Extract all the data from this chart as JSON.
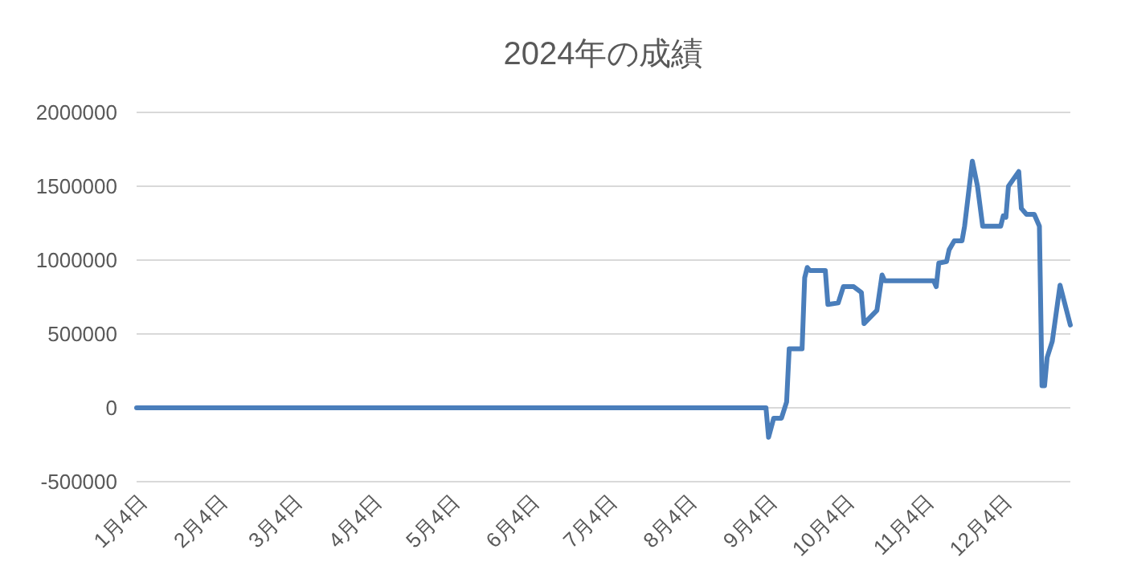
{
  "chart_data": {
    "type": "line",
    "title": "2024年の成績",
    "x": [
      "2024-01-04",
      "2024-09-04",
      "2024-09-05",
      "2024-09-07",
      "2024-09-10",
      "2024-09-12",
      "2024-09-13",
      "2024-09-18",
      "2024-09-19",
      "2024-09-20",
      "2024-09-21",
      "2024-09-27",
      "2024-09-28",
      "2024-10-02",
      "2024-10-04",
      "2024-10-08",
      "2024-10-11",
      "2024-10-12",
      "2024-10-17",
      "2024-10-19",
      "2024-10-20",
      "2024-11-08",
      "2024-11-09",
      "2024-11-10",
      "2024-11-13",
      "2024-11-14",
      "2024-11-16",
      "2024-11-19",
      "2024-11-20",
      "2024-11-23",
      "2024-11-25",
      "2024-11-27",
      "2024-12-04",
      "2024-12-05",
      "2024-12-06",
      "2024-12-07",
      "2024-12-11",
      "2024-12-12",
      "2024-12-14",
      "2024-12-17",
      "2024-12-19",
      "2024-12-20",
      "2024-12-21",
      "2024-12-22",
      "2024-12-24",
      "2024-12-27",
      "2024-12-31"
    ],
    "series": [
      {
        "color": "#4a7ebb",
        "values": [
          0,
          0,
          -200000,
          -70000,
          -70000,
          40000,
          400000,
          400000,
          880000,
          950000,
          930000,
          930000,
          700000,
          710000,
          820000,
          820000,
          780000,
          570000,
          660000,
          900000,
          860000,
          860000,
          820000,
          980000,
          990000,
          1070000,
          1130000,
          1130000,
          1230000,
          1670000,
          1500000,
          1230000,
          1230000,
          1300000,
          1290000,
          1500000,
          1600000,
          1350000,
          1310000,
          1310000,
          1230000,
          150000,
          150000,
          340000,
          450000,
          830000,
          560000
        ]
      }
    ],
    "xlim": [
      "2024-01-04",
      "2024-12-31"
    ],
    "xticks": [
      {
        "value": "2024-01-04",
        "label": "1月4日"
      },
      {
        "value": "2024-02-04",
        "label": "2月4日"
      },
      {
        "value": "2024-03-04",
        "label": "3月4日"
      },
      {
        "value": "2024-04-04",
        "label": "4月4日"
      },
      {
        "value": "2024-05-04",
        "label": "5月4日"
      },
      {
        "value": "2024-06-04",
        "label": "6月4日"
      },
      {
        "value": "2024-07-04",
        "label": "7月4日"
      },
      {
        "value": "2024-08-04",
        "label": "8月4日"
      },
      {
        "value": "2024-09-04",
        "label": "9月4日"
      },
      {
        "value": "2024-10-04",
        "label": "10月4日"
      },
      {
        "value": "2024-11-04",
        "label": "11月4日"
      },
      {
        "value": "2024-12-04",
        "label": "12月4日"
      }
    ],
    "ylim": [
      -500000,
      2000000
    ],
    "yticks": [
      -500000,
      0,
      500000,
      1000000,
      1500000,
      2000000
    ],
    "grid": "y",
    "marker": "none",
    "line_style": "solid"
  }
}
